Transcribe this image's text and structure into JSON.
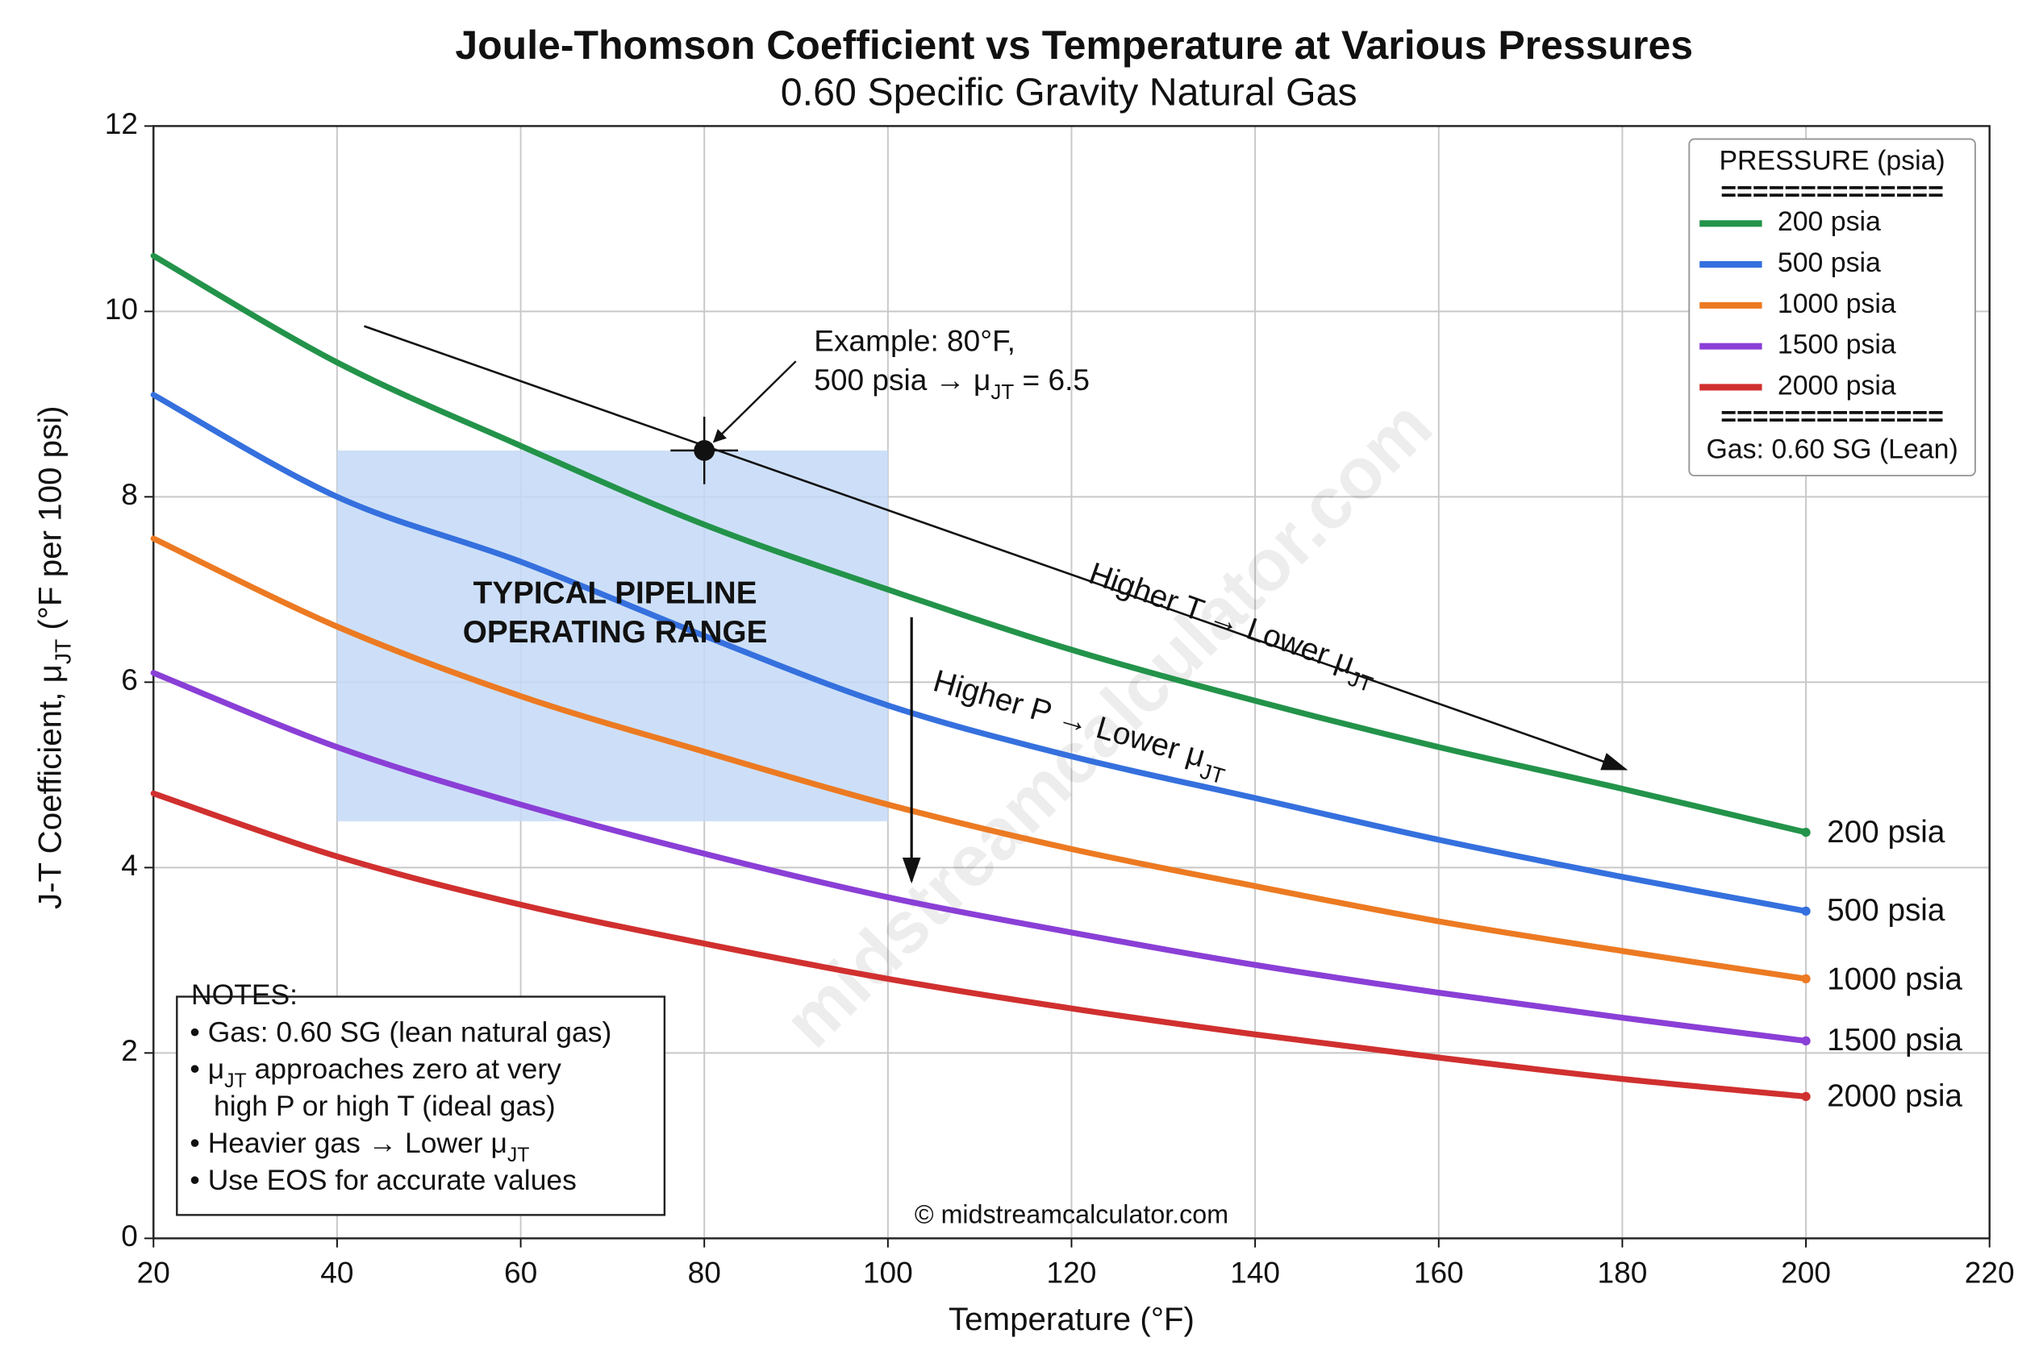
{
  "chart_data": {
    "type": "line",
    "title": "Joule-Thomson Coefficient vs Temperature at Various Pressures",
    "subtitle": "0.60 Specific Gravity Natural Gas",
    "x_label": "Temperature (°F)",
    "y_label": [
      "J-T Coefficient, μ",
      {
        "sub": "JT"
      },
      " (°F per 100 psi)"
    ],
    "x": [
      20,
      40,
      60,
      80,
      100,
      120,
      140,
      160,
      180,
      200
    ],
    "series": [
      {
        "name": "200 psia",
        "color": "#23934a",
        "values": [
          10.6,
          9.45,
          8.55,
          7.7,
          7.0,
          6.35,
          5.8,
          5.3,
          4.85,
          4.38
        ]
      },
      {
        "name": "500 psia",
        "color": "#3570de",
        "values": [
          9.1,
          8.0,
          7.3,
          6.5,
          5.75,
          5.2,
          4.75,
          4.3,
          3.9,
          3.53
        ]
      },
      {
        "name": "1000 psia",
        "color": "#ec7a22",
        "values": [
          7.55,
          6.6,
          5.85,
          5.25,
          4.68,
          4.2,
          3.8,
          3.42,
          3.1,
          2.8
        ]
      },
      {
        "name": "1500 psia",
        "color": "#8a3fd6",
        "values": [
          6.1,
          5.3,
          4.68,
          4.15,
          3.68,
          3.3,
          2.95,
          2.65,
          2.38,
          2.13
        ]
      },
      {
        "name": "2000 psia",
        "color": "#d0302f",
        "values": [
          4.8,
          4.12,
          3.6,
          3.18,
          2.8,
          2.48,
          2.2,
          1.95,
          1.72,
          1.53
        ]
      }
    ],
    "xlim": [
      20,
      220
    ],
    "xticks": [
      20,
      40,
      60,
      80,
      100,
      120,
      140,
      160,
      180,
      200,
      220
    ],
    "ylim": [
      0,
      12
    ],
    "yticks": [
      0,
      2,
      4,
      6,
      8,
      10,
      12
    ],
    "grid": true,
    "legend_position": "upper right",
    "legend_title": "PRESSURE (psia)",
    "legend_separator": "==============",
    "legend_footer": "Gas: 0.60 SG (Lean)",
    "highlight_region": {
      "label": [
        "TYPICAL PIPELINE",
        "OPERATING RANGE"
      ],
      "x": [
        40,
        100
      ],
      "y": [
        4.5,
        8.5
      ],
      "color": "#c4d9f7"
    },
    "example_point": {
      "x": 80,
      "y": 8.5,
      "label": [
        "Example: 80°F,",
        [
          "500 psia → μ",
          {
            "sub": "JT"
          },
          " = 6.5"
        ]
      ]
    },
    "annotations": [
      [
        "Higher T → Lower μ",
        {
          "sub": "JT"
        }
      ],
      [
        "Higher P → Lower μ",
        {
          "sub": "JT"
        }
      ]
    ],
    "notes": {
      "title": "NOTES:",
      "lines": [
        [
          "• Gas: 0.60 SG (lean natural gas)"
        ],
        [
          "• μ",
          {
            "sub": "JT"
          },
          " approaches zero at very"
        ],
        [
          "   high P or high T (ideal gas)"
        ],
        [
          "• Heavier gas → Lower μ",
          {
            "sub": "JT"
          }
        ],
        [
          "• Use EOS for accurate values"
        ]
      ]
    },
    "copyright": "© midstreamcalculator.com",
    "watermark": "midstreamcalculator.com"
  }
}
